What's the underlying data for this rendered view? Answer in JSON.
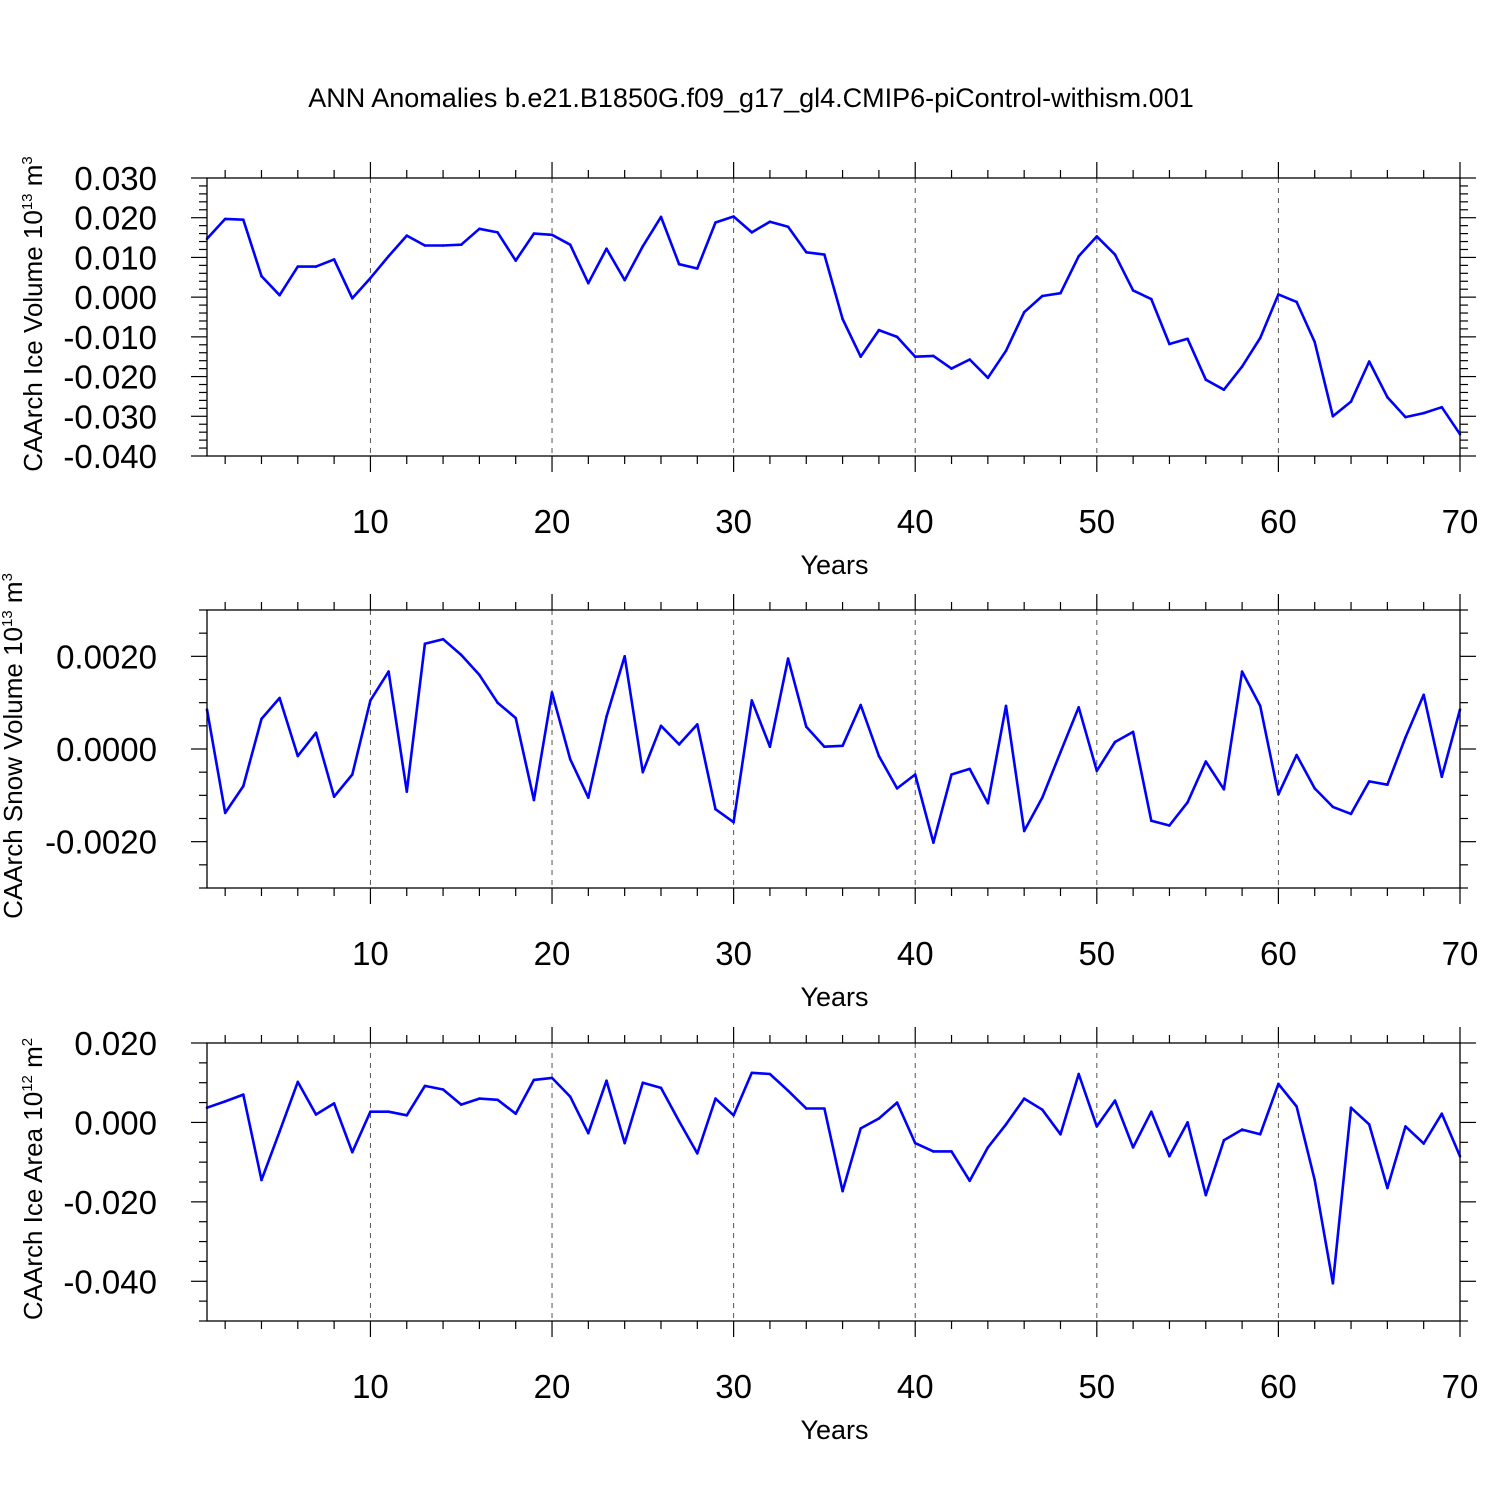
{
  "chart_data": [
    {
      "type": "line",
      "title": "ANN Anomalies b.e21.B1850G.f09_g17_gl4.CMIP6-piControl-withism.001",
      "xlabel": "Years",
      "ylabel": "CAArch Ice Volume 10",
      "ylabel_exp": "13",
      "ylabel_unit": " m",
      "ylabel_unit_exp": "3",
      "xlim": [
        1,
        70
      ],
      "ylim": [
        -0.04,
        0.03
      ],
      "xticks": [
        10,
        20,
        30,
        40,
        50,
        60,
        70
      ],
      "xtick_labels": [
        "10",
        "20",
        "30",
        "40",
        "50",
        "60",
        "70"
      ],
      "yticks": [
        -0.04,
        -0.03,
        -0.02,
        -0.01,
        0.0,
        0.01,
        0.02,
        0.03
      ],
      "ytick_labels": [
        "-0.040",
        "-0.030",
        "-0.020",
        "-0.010",
        "0.000",
        "0.010",
        "0.020",
        "0.030"
      ],
      "y_minor_step": 0.002,
      "x_minor_step": 2,
      "grid_x": [
        10,
        20,
        30,
        40,
        50,
        60
      ],
      "series": [
        {
          "name": "CAArch Ice Volume",
          "color": "#0000ff",
          "values": [
            0.0147,
            0.0197,
            0.0195,
            0.0053,
            0.0005,
            0.0077,
            0.0077,
            0.0095,
            -0.0003,
            0.0048,
            0.0103,
            0.0155,
            0.013,
            0.013,
            0.0132,
            0.0172,
            0.0163,
            0.0092,
            0.016,
            0.0157,
            0.0132,
            0.0035,
            0.0122,
            0.0043,
            0.0128,
            0.0202,
            0.0083,
            0.0072,
            0.0188,
            0.0203,
            0.0163,
            0.019,
            0.0177,
            0.0113,
            0.0107,
            -0.0055,
            -0.015,
            -0.0083,
            -0.01,
            -0.015,
            -0.0148,
            -0.018,
            -0.0157,
            -0.0203,
            -0.0135,
            -0.0038,
            0.0003,
            0.001,
            0.0103,
            0.0153,
            0.0107,
            0.0017,
            -0.0005,
            -0.0118,
            -0.0105,
            -0.0208,
            -0.0233,
            -0.0175,
            -0.0103,
            0.0007,
            -0.0012,
            -0.0113,
            -0.03,
            -0.0263,
            -0.0162,
            -0.0252,
            -0.0302,
            -0.0292,
            -0.0277,
            -0.0345
          ]
        }
      ]
    },
    {
      "type": "line",
      "title": "",
      "xlabel": "Years",
      "ylabel": "CAArch Snow Volume 10",
      "ylabel_exp": "13",
      "ylabel_unit": " m",
      "ylabel_unit_exp": "3",
      "xlim": [
        1,
        70
      ],
      "ylim": [
        -0.003,
        0.003
      ],
      "xticks": [
        10,
        20,
        30,
        40,
        50,
        60,
        70
      ],
      "xtick_labels": [
        "10",
        "20",
        "30",
        "40",
        "50",
        "60",
        "70"
      ],
      "yticks": [
        -0.002,
        0.0,
        0.002
      ],
      "ytick_labels": [
        "-0.0020",
        "0.0000",
        "0.0020"
      ],
      "y_minor_step": 0.0005,
      "x_minor_step": 2,
      "grid_x": [
        10,
        20,
        30,
        40,
        50,
        60
      ],
      "series": [
        {
          "name": "CAArch Snow Volume",
          "color": "#0000ff",
          "values": [
            0.00085,
            -0.00138,
            -0.0008,
            0.00065,
            0.0011,
            -0.00015,
            0.00035,
            -0.00103,
            -0.00055,
            0.00105,
            0.00167,
            -0.00092,
            0.00227,
            0.00237,
            0.00203,
            0.0016,
            0.001,
            0.00067,
            -0.0011,
            0.00122,
            -0.00022,
            -0.00105,
            0.0007,
            0.002,
            -0.0005,
            0.0005,
            0.0001,
            0.00053,
            -0.0013,
            -0.00158,
            0.00105,
            5e-05,
            0.00195,
            0.00048,
            5e-05,
            7e-05,
            0.00095,
            -0.00015,
            -0.00085,
            -0.00055,
            -0.00202,
            -0.00055,
            -0.00043,
            -0.00117,
            0.00093,
            -0.00177,
            -0.00105,
            -7e-05,
            0.0009,
            -0.00047,
            0.00015,
            0.00037,
            -0.00155,
            -0.00165,
            -0.00115,
            -0.00027,
            -0.00087,
            0.00167,
            0.00093,
            -0.00098,
            -0.00013,
            -0.00085,
            -0.00125,
            -0.0014,
            -0.0007,
            -0.00077,
            0.00025,
            0.00117,
            -0.0006,
            0.00085
          ]
        }
      ]
    },
    {
      "type": "line",
      "title": "",
      "xlabel": "Years",
      "ylabel": "CAArch Ice Area 10",
      "ylabel_exp": "12",
      "ylabel_unit": " m",
      "ylabel_unit_exp": "2",
      "xlim": [
        1,
        70
      ],
      "ylim": [
        -0.05,
        0.02
      ],
      "xticks": [
        10,
        20,
        30,
        40,
        50,
        60,
        70
      ],
      "xtick_labels": [
        "10",
        "20",
        "30",
        "40",
        "50",
        "60",
        "70"
      ],
      "yticks": [
        -0.04,
        -0.02,
        0.0,
        0.02
      ],
      "ytick_labels": [
        "-0.040",
        "-0.020",
        "0.000",
        "0.020"
      ],
      "y_minor_step": 0.005,
      "x_minor_step": 2,
      "grid_x": [
        10,
        20,
        30,
        40,
        50,
        60
      ],
      "series": [
        {
          "name": "CAArch Ice Area",
          "color": "#0000ff",
          "values": [
            0.0037,
            0.0053,
            0.007,
            -0.0145,
            -0.0023,
            0.0102,
            0.002,
            0.0048,
            -0.0075,
            0.0027,
            0.0027,
            0.0018,
            0.0092,
            0.0083,
            0.0045,
            0.006,
            0.0057,
            0.0022,
            0.0107,
            0.0112,
            0.0065,
            -0.0027,
            0.0105,
            -0.0052,
            0.01,
            0.0087,
            0.0003,
            -0.0078,
            0.006,
            0.0018,
            0.0125,
            0.0122,
            0.008,
            0.0035,
            0.0035,
            -0.0173,
            -0.0015,
            0.001,
            0.005,
            -0.0052,
            -0.0073,
            -0.0073,
            -0.0147,
            -0.0063,
            -0.0005,
            0.006,
            0.0032,
            -0.003,
            0.0122,
            -0.001,
            0.0055,
            -0.0063,
            0.0027,
            -0.0085,
            0.0,
            -0.0183,
            -0.0045,
            -0.0018,
            -0.003,
            0.0097,
            0.004,
            -0.0145,
            -0.0405,
            0.0037,
            -0.0005,
            -0.0165,
            -0.001,
            -0.0053,
            0.0022,
            -0.0085
          ]
        }
      ]
    }
  ]
}
